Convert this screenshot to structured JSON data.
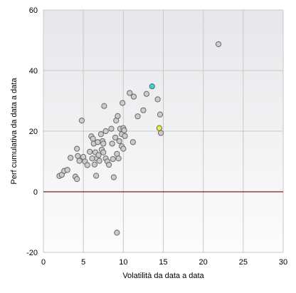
{
  "chart_data": {
    "type": "scatter",
    "xlabel": "Volatilità da data a data",
    "ylabel": "Perf cumulativa da data a data",
    "xlim": [
      0,
      30
    ],
    "ylim": [
      -20,
      60
    ],
    "xticks": [
      "0",
      "5",
      "10",
      "15",
      "20",
      "25",
      "30"
    ],
    "yticks": [
      "-20",
      "0",
      "20",
      "40",
      "60"
    ],
    "grid": true,
    "reference_line": {
      "y": 0,
      "color": "#8b1a1a"
    },
    "colors": {
      "point_default": "#cccccc",
      "point_edge": "#666666",
      "highlight_cyan": "#33d6d6",
      "highlight_yellow": "#eeee33",
      "grid": "#c8c8c8",
      "background_top": "#e6e7ea",
      "background_bottom": "#fcfcfd"
    },
    "series": [
      {
        "points": [
          [
            2.0,
            5.2
          ],
          [
            2.3,
            5.6
          ],
          [
            2.6,
            6.9
          ],
          [
            3.0,
            7.2
          ],
          [
            3.4,
            11.2
          ],
          [
            4.0,
            5.0
          ],
          [
            4.2,
            4.2
          ],
          [
            4.2,
            14.2
          ],
          [
            4.3,
            11.8
          ],
          [
            4.5,
            10.2
          ],
          [
            4.8,
            23.5
          ],
          [
            5.0,
            11.5
          ],
          [
            5.2,
            10.0
          ],
          [
            5.5,
            8.8
          ],
          [
            5.8,
            13.2
          ],
          [
            6.0,
            18.3
          ],
          [
            6.1,
            11.0
          ],
          [
            6.2,
            17.5
          ],
          [
            6.3,
            15.9
          ],
          [
            6.4,
            9.0
          ],
          [
            6.5,
            13.0
          ],
          [
            6.6,
            5.3
          ],
          [
            6.7,
            11.0
          ],
          [
            6.8,
            16.4
          ],
          [
            6.9,
            12.1
          ],
          [
            7.0,
            10.2
          ],
          [
            7.2,
            19.0
          ],
          [
            7.3,
            13.9
          ],
          [
            7.4,
            16.7
          ],
          [
            7.5,
            15.9
          ],
          [
            7.5,
            13.0
          ],
          [
            7.6,
            28.3
          ],
          [
            7.8,
            20.0
          ],
          [
            7.8,
            11.0
          ],
          [
            8.0,
            10.0
          ],
          [
            8.2,
            8.9
          ],
          [
            8.5,
            20.8
          ],
          [
            8.6,
            15.9
          ],
          [
            8.7,
            10.8
          ],
          [
            8.8,
            4.8
          ],
          [
            9.0,
            17.9
          ],
          [
            9.1,
            23.5
          ],
          [
            9.2,
            12.5
          ],
          [
            9.2,
            -13.5
          ],
          [
            9.3,
            25.0
          ],
          [
            9.4,
            11.0
          ],
          [
            9.5,
            16.7
          ],
          [
            9.6,
            20.8
          ],
          [
            9.8,
            19.0
          ],
          [
            9.8,
            15.0
          ],
          [
            9.9,
            29.3
          ],
          [
            10.0,
            14.2
          ],
          [
            10.0,
            21.0
          ],
          [
            10.1,
            20.3
          ],
          [
            10.2,
            18.4
          ],
          [
            10.8,
            32.6
          ],
          [
            11.2,
            16.4
          ],
          [
            11.3,
            31.4
          ],
          [
            11.8,
            24.9
          ],
          [
            12.5,
            26.9
          ],
          [
            12.9,
            32.3
          ],
          [
            14.3,
            30.5
          ],
          [
            14.6,
            25.5
          ],
          [
            14.7,
            19.4
          ],
          [
            21.9,
            48.7
          ]
        ]
      },
      {
        "highlight": "cyan",
        "points": [
          [
            13.6,
            34.8
          ]
        ]
      },
      {
        "highlight": "yellow",
        "points": [
          [
            14.5,
            21.0
          ]
        ]
      }
    ]
  }
}
